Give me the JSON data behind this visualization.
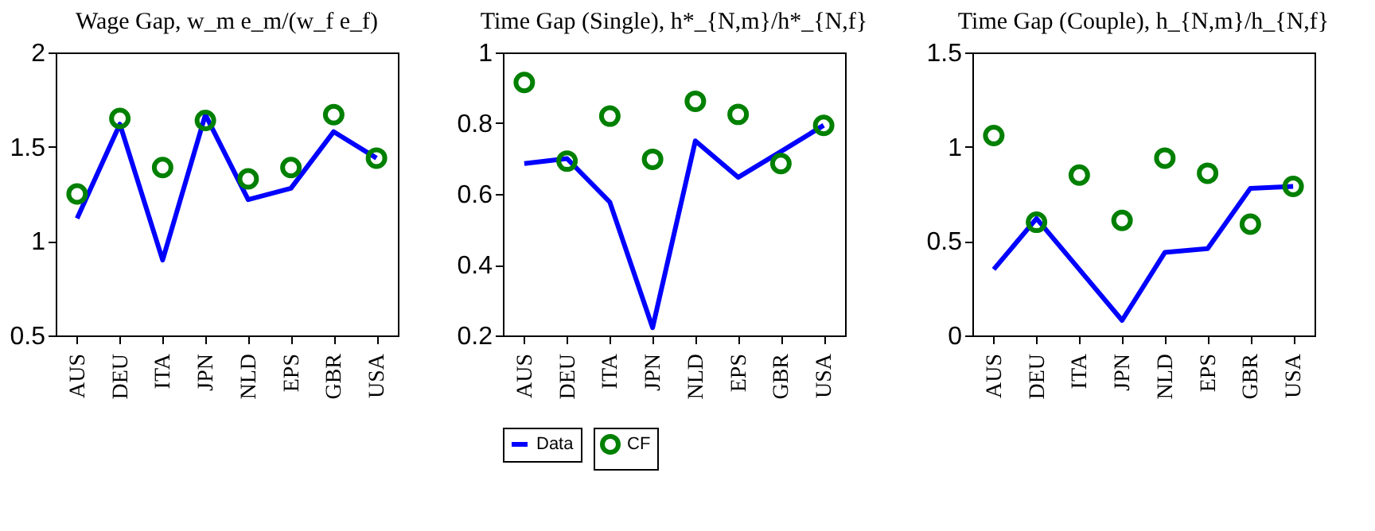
{
  "chart_data": [
    {
      "type": "line",
      "title": "Wage Gap, w_m e_m/(w_f e_f)",
      "categories": [
        "AUS",
        "DEU",
        "ITA",
        "JPN",
        "NLD",
        "EPS",
        "GBR",
        "USA"
      ],
      "ylim": [
        0.5,
        2
      ],
      "yticks": [
        0.5,
        1,
        1.5,
        2
      ],
      "series": [
        {
          "color": "#0000ff",
          "line_style": "solid",
          "values": [
            1.12,
            1.62,
            0.9,
            1.67,
            1.22,
            1.28,
            1.58,
            1.44
          ]
        },
        {
          "type": "scatter",
          "color": "#008000",
          "marker": "circle",
          "values": [
            1.25,
            1.65,
            1.39,
            1.64,
            1.33,
            1.39,
            1.67,
            1.44
          ]
        }
      ]
    },
    {
      "type": "line",
      "title": "Time Gap (Single), h*_{N,m}/h*_{N,f}",
      "categories": [
        "AUS",
        "DEU",
        "ITA",
        "JPN",
        "NLD",
        "EPS",
        "GBR",
        "USA"
      ],
      "ylim": [
        0.2,
        1
      ],
      "yticks": [
        0.2,
        0.4,
        0.6,
        0.8,
        1
      ],
      "legend": "bottom",
      "series": [
        {
          "name": "Data",
          "color": "#0000ff",
          "line_style": "solid",
          "values": [
            0.686,
            0.7,
            0.577,
            0.222,
            0.75,
            0.647,
            0.72,
            0.794
          ]
        },
        {
          "name": "CF",
          "type": "scatter",
          "color": "#008000",
          "marker": "circle",
          "values": [
            0.915,
            0.693,
            0.82,
            0.698,
            0.862,
            0.825,
            0.686,
            0.794
          ]
        }
      ]
    },
    {
      "type": "line",
      "title": "Time Gap (Couple), h_{N,m}/h_{N,f}",
      "categories": [
        "AUS",
        "DEU",
        "ITA",
        "JPN",
        "NLD",
        "EPS",
        "GBR",
        "USA"
      ],
      "ylim": [
        0,
        1.5
      ],
      "yticks": [
        0,
        0.5,
        1,
        1.5
      ],
      "series": [
        {
          "color": "#0000ff",
          "line_style": "solid",
          "values": [
            0.35,
            0.62,
            0.35,
            0.08,
            0.44,
            0.46,
            0.78,
            0.79
          ]
        },
        {
          "type": "scatter",
          "color": "#008000",
          "marker": "circle",
          "values": [
            1.06,
            0.6,
            0.85,
            0.61,
            0.94,
            0.86,
            0.59,
            0.79
          ]
        }
      ]
    }
  ]
}
